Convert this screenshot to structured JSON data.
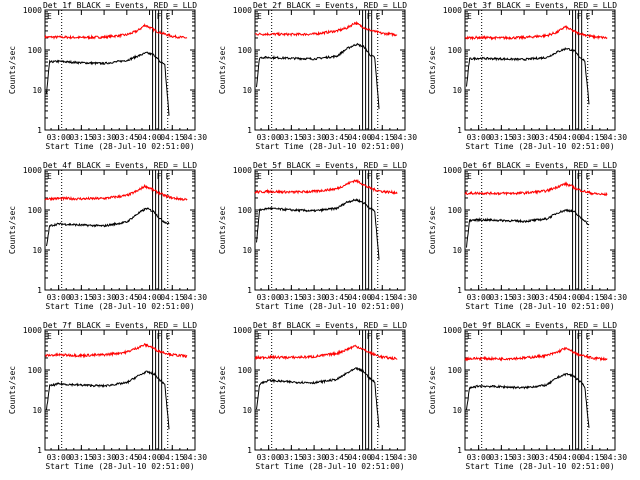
{
  "colors": {
    "events": "#000000",
    "lld": "#ff0000",
    "axis": "#000000",
    "background": "#ffffff"
  },
  "chart_data": [
    {
      "type": "line",
      "title": "Det 1f BLACK = Events, RED = LLD",
      "xlabel": "Start Time (28-Jul-10 02:51:00)",
      "ylabel": "Counts/sec",
      "xlim": [
        "02:51",
        "04:30"
      ],
      "ylim": [
        1,
        1000
      ],
      "yscale": "log",
      "x_ticks": [
        "03:00",
        "03:15",
        "03:30",
        "03:45",
        "04:00",
        "04:15",
        "04:30"
      ],
      "y_ticks": [
        "1",
        "10",
        "100",
        "1000"
      ],
      "flags": [
        "E",
        "F",
        "E"
      ],
      "series": [
        {
          "color": "red",
          "x": [
            "02:51",
            "03:00",
            "03:15",
            "03:30",
            "03:45",
            "03:52",
            "03:57",
            "04:01",
            "04:05",
            "04:10",
            "04:15",
            "04:25"
          ],
          "values": [
            210,
            210,
            205,
            210,
            240,
            300,
            420,
            350,
            290,
            250,
            220,
            200
          ]
        },
        {
          "color": "black",
          "x": [
            "02:52",
            "02:54",
            "03:00",
            "03:15",
            "03:30",
            "03:45",
            "03:52",
            "03:58",
            "04:03",
            "04:07",
            "04:10",
            "04:13"
          ],
          "values": [
            8,
            50,
            52,
            48,
            46,
            55,
            70,
            85,
            75,
            50,
            45,
            2
          ]
        }
      ]
    },
    {
      "type": "line",
      "title": "Det 2f BLACK = Events, RED = LLD",
      "xlabel": "Start Time (28-Jul-10 02:51:00)",
      "ylabel": "Counts/sec",
      "xlim": [
        "02:51",
        "04:30"
      ],
      "ylim": [
        1,
        1000
      ],
      "yscale": "log",
      "x_ticks": [
        "03:00",
        "03:15",
        "03:30",
        "03:45",
        "04:00",
        "04:15",
        "04:30"
      ],
      "y_ticks": [
        "1",
        "10",
        "100",
        "1000"
      ],
      "flags": [
        "E",
        "F",
        "E"
      ],
      "series": [
        {
          "color": "red",
          "x": [
            "02:51",
            "03:00",
            "03:15",
            "03:30",
            "03:45",
            "03:52",
            "03:57",
            "04:01",
            "04:05",
            "04:10",
            "04:15",
            "04:25"
          ],
          "values": [
            250,
            250,
            245,
            250,
            300,
            360,
            480,
            400,
            330,
            290,
            260,
            240
          ]
        },
        {
          "color": "black",
          "x": [
            "02:52",
            "02:54",
            "03:00",
            "03:15",
            "03:30",
            "03:45",
            "03:52",
            "03:58",
            "04:03",
            "04:07",
            "04:10",
            "04:13"
          ],
          "values": [
            12,
            65,
            65,
            62,
            60,
            70,
            110,
            140,
            120,
            75,
            65,
            3
          ]
        }
      ]
    },
    {
      "type": "line",
      "title": "Det 3f BLACK = Events, RED = LLD",
      "xlabel": "Start Time (28-Jul-10 02:51:00)",
      "ylabel": "Counts/sec",
      "xlim": [
        "02:51",
        "04:30"
      ],
      "ylim": [
        1,
        1000
      ],
      "yscale": "log",
      "x_ticks": [
        "03:00",
        "03:15",
        "03:30",
        "03:45",
        "04:00",
        "04:15",
        "04:30"
      ],
      "y_ticks": [
        "1",
        "10",
        "100",
        "1000"
      ],
      "flags": [
        "E",
        "F",
        "E"
      ],
      "series": [
        {
          "color": "red",
          "x": [
            "02:51",
            "03:00",
            "03:15",
            "03:30",
            "03:45",
            "03:52",
            "03:57",
            "04:01",
            "04:05",
            "04:10",
            "04:15",
            "04:25"
          ],
          "values": [
            200,
            205,
            200,
            205,
            230,
            280,
            380,
            320,
            270,
            240,
            215,
            200
          ]
        },
        {
          "color": "black",
          "x": [
            "02:52",
            "02:54",
            "03:00",
            "03:15",
            "03:30",
            "03:45",
            "03:52",
            "03:58",
            "04:03",
            "04:07",
            "04:10",
            "04:13"
          ],
          "values": [
            12,
            60,
            62,
            60,
            58,
            65,
            90,
            110,
            95,
            65,
            55,
            4
          ]
        }
      ]
    },
    {
      "type": "line",
      "title": "Det 4f BLACK = Events, RED = LLD",
      "xlabel": "Start Time (28-Jul-10 02:51:00)",
      "ylabel": "Counts/sec",
      "xlim": [
        "02:51",
        "04:30"
      ],
      "ylim": [
        1,
        1000
      ],
      "yscale": "log",
      "x_ticks": [
        "03:00",
        "03:15",
        "03:30",
        "03:45",
        "04:00",
        "04:15",
        "04:30"
      ],
      "y_ticks": [
        "1",
        "10",
        "100",
        "1000"
      ],
      "flags": [
        "E",
        "F",
        "E"
      ],
      "series": [
        {
          "color": "red",
          "x": [
            "02:51",
            "03:00",
            "03:15",
            "03:30",
            "03:45",
            "03:52",
            "03:57",
            "04:01",
            "04:05",
            "04:10",
            "04:15",
            "04:25"
          ],
          "values": [
            190,
            195,
            190,
            195,
            230,
            300,
            400,
            340,
            280,
            230,
            200,
            180
          ]
        },
        {
          "color": "black",
          "x": [
            "02:52",
            "02:54",
            "03:00",
            "03:15",
            "03:30",
            "03:45",
            "03:52",
            "03:58",
            "04:03",
            "04:07",
            "04:10",
            "04:13"
          ],
          "values": [
            12,
            40,
            45,
            42,
            40,
            50,
            80,
            110,
            90,
            60,
            50,
            45
          ]
        }
      ]
    },
    {
      "type": "line",
      "title": "Det 5f BLACK = Events, RED = LLD",
      "xlabel": "Start Time (28-Jul-10 02:51:00)",
      "ylabel": "Counts/sec",
      "xlim": [
        "02:51",
        "04:30"
      ],
      "ylim": [
        1,
        1000
      ],
      "yscale": "log",
      "x_ticks": [
        "03:00",
        "03:15",
        "03:30",
        "03:45",
        "04:00",
        "04:15",
        "04:30"
      ],
      "y_ticks": [
        "1",
        "10",
        "100",
        "1000"
      ],
      "flags": [
        "E",
        "F",
        "E"
      ],
      "series": [
        {
          "color": "red",
          "x": [
            "02:51",
            "03:00",
            "03:15",
            "03:30",
            "03:45",
            "03:52",
            "03:57",
            "04:01",
            "04:05",
            "04:10",
            "04:15",
            "04:25"
          ],
          "values": [
            280,
            290,
            280,
            290,
            340,
            450,
            550,
            470,
            380,
            320,
            290,
            270
          ]
        },
        {
          "color": "black",
          "x": [
            "02:52",
            "02:54",
            "03:00",
            "03:15",
            "03:30",
            "03:45",
            "03:52",
            "03:58",
            "04:03",
            "04:07",
            "04:10",
            "04:13"
          ],
          "values": [
            15,
            100,
            110,
            100,
            95,
            110,
            160,
            180,
            150,
            110,
            95,
            5
          ]
        }
      ]
    },
    {
      "type": "line",
      "title": "Det 6f BLACK = Events, RED = LLD",
      "xlabel": "Start Time (28-Jul-10 02:51:00)",
      "ylabel": "Counts/sec",
      "xlim": [
        "02:51",
        "04:30"
      ],
      "ylim": [
        1,
        1000
      ],
      "yscale": "log",
      "x_ticks": [
        "03:00",
        "03:15",
        "03:30",
        "03:45",
        "04:00",
        "04:15",
        "04:30"
      ],
      "y_ticks": [
        "1",
        "10",
        "100",
        "1000"
      ],
      "flags": [
        "E",
        "F",
        "E"
      ],
      "series": [
        {
          "color": "red",
          "x": [
            "02:51",
            "03:00",
            "03:15",
            "03:30",
            "03:45",
            "03:52",
            "03:57",
            "04:01",
            "04:05",
            "04:10",
            "04:15",
            "04:25"
          ],
          "values": [
            260,
            265,
            260,
            265,
            300,
            380,
            450,
            400,
            330,
            290,
            260,
            240
          ]
        },
        {
          "color": "black",
          "x": [
            "02:52",
            "02:54",
            "03:00",
            "03:15",
            "03:30",
            "03:45",
            "03:52",
            "03:58",
            "04:03",
            "04:07",
            "04:10",
            "04:13"
          ],
          "values": [
            12,
            55,
            57,
            55,
            52,
            60,
            85,
            100,
            90,
            65,
            55,
            40
          ]
        }
      ]
    },
    {
      "type": "line",
      "title": "Det 7f BLACK = Events, RED = LLD",
      "xlabel": "Start Time (28-Jul-10 02:51:00)",
      "ylabel": "Counts/sec",
      "xlim": [
        "02:51",
        "04:30"
      ],
      "ylim": [
        1,
        1000
      ],
      "yscale": "log",
      "x_ticks": [
        "03:00",
        "03:15",
        "03:30",
        "03:45",
        "04:00",
        "04:15",
        "04:30"
      ],
      "y_ticks": [
        "1",
        "10",
        "100",
        "1000"
      ],
      "flags": [
        "E",
        "F",
        "E"
      ],
      "series": [
        {
          "color": "red",
          "x": [
            "02:51",
            "03:00",
            "03:15",
            "03:30",
            "03:45",
            "03:52",
            "03:57",
            "04:01",
            "04:05",
            "04:10",
            "04:15",
            "04:25"
          ],
          "values": [
            230,
            240,
            230,
            240,
            280,
            360,
            430,
            380,
            310,
            270,
            240,
            220
          ]
        },
        {
          "color": "black",
          "x": [
            "02:52",
            "02:54",
            "03:00",
            "03:15",
            "03:30",
            "03:45",
            "03:52",
            "03:58",
            "04:03",
            "04:07",
            "04:10",
            "04:13"
          ],
          "values": [
            10,
            40,
            45,
            42,
            40,
            48,
            70,
            90,
            80,
            55,
            45,
            3
          ]
        }
      ]
    },
    {
      "type": "line",
      "title": "Det 8f BLACK = Events, RED = LLD",
      "xlabel": "Start Time (28-Jul-10 02:51:00)",
      "ylabel": "Counts/sec",
      "xlim": [
        "02:51",
        "04:30"
      ],
      "ylim": [
        1,
        1000
      ],
      "yscale": "log",
      "x_ticks": [
        "03:00",
        "03:15",
        "03:30",
        "03:45",
        "04:00",
        "04:15",
        "04:30"
      ],
      "y_ticks": [
        "1",
        "10",
        "100",
        "1000"
      ],
      "flags": [
        "E",
        "F",
        "E"
      ],
      "series": [
        {
          "color": "red",
          "x": [
            "02:51",
            "03:00",
            "03:15",
            "03:30",
            "03:45",
            "03:52",
            "03:57",
            "04:01",
            "04:05",
            "04:10",
            "04:15",
            "04:25"
          ],
          "values": [
            200,
            210,
            205,
            215,
            260,
            330,
            400,
            350,
            290,
            240,
            210,
            190
          ]
        },
        {
          "color": "black",
          "x": [
            "02:52",
            "02:54",
            "03:00",
            "03:15",
            "03:30",
            "03:45",
            "03:52",
            "03:58",
            "04:03",
            "04:07",
            "04:10",
            "04:13"
          ],
          "values": [
            10,
            45,
            55,
            50,
            48,
            58,
            85,
            110,
            90,
            60,
            50,
            3
          ]
        }
      ]
    },
    {
      "type": "line",
      "title": "Det 9f BLACK = Events, RED = LLD",
      "xlabel": "Start Time (28-Jul-10 02:51:00)",
      "ylabel": "Counts/sec",
      "xlim": [
        "02:51",
        "04:30"
      ],
      "ylim": [
        1,
        1000
      ],
      "yscale": "log",
      "x_ticks": [
        "03:00",
        "03:15",
        "03:30",
        "03:45",
        "04:00",
        "04:15",
        "04:30"
      ],
      "y_ticks": [
        "1",
        "10",
        "100",
        "1000"
      ],
      "flags": [
        "E",
        "F",
        "E"
      ],
      "series": [
        {
          "color": "red",
          "x": [
            "02:51",
            "03:00",
            "03:15",
            "03:30",
            "03:45",
            "03:52",
            "03:57",
            "04:01",
            "04:05",
            "04:10",
            "04:15",
            "04:25"
          ],
          "values": [
            190,
            195,
            190,
            200,
            230,
            280,
            350,
            300,
            250,
            220,
            200,
            185
          ]
        },
        {
          "color": "black",
          "x": [
            "02:52",
            "02:54",
            "03:00",
            "03:15",
            "03:30",
            "03:45",
            "03:52",
            "03:58",
            "04:03",
            "04:07",
            "04:10",
            "04:13"
          ],
          "values": [
            10,
            35,
            40,
            38,
            36,
            42,
            65,
            80,
            70,
            50,
            40,
            3
          ]
        }
      ]
    }
  ]
}
